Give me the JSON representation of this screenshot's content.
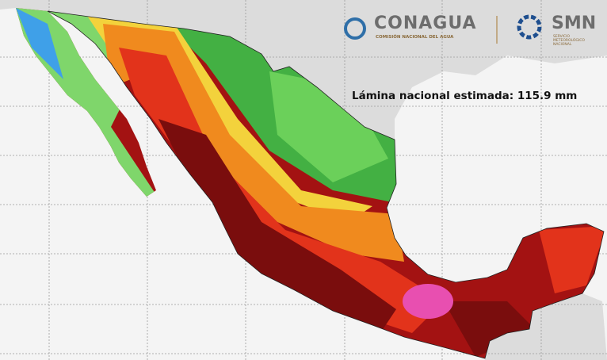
{
  "header": {
    "logo_conagua": {
      "title": "CONAGUA",
      "subtitle": "COMISIÓN NACIONAL DEL AGUA"
    },
    "logo_smn": {
      "title": "SMN",
      "subtitle": "SERVICIO METEOROLÓGICO NACIONAL"
    }
  },
  "annotation": "Lámina nacional estimada: 115.9 mm"
}
